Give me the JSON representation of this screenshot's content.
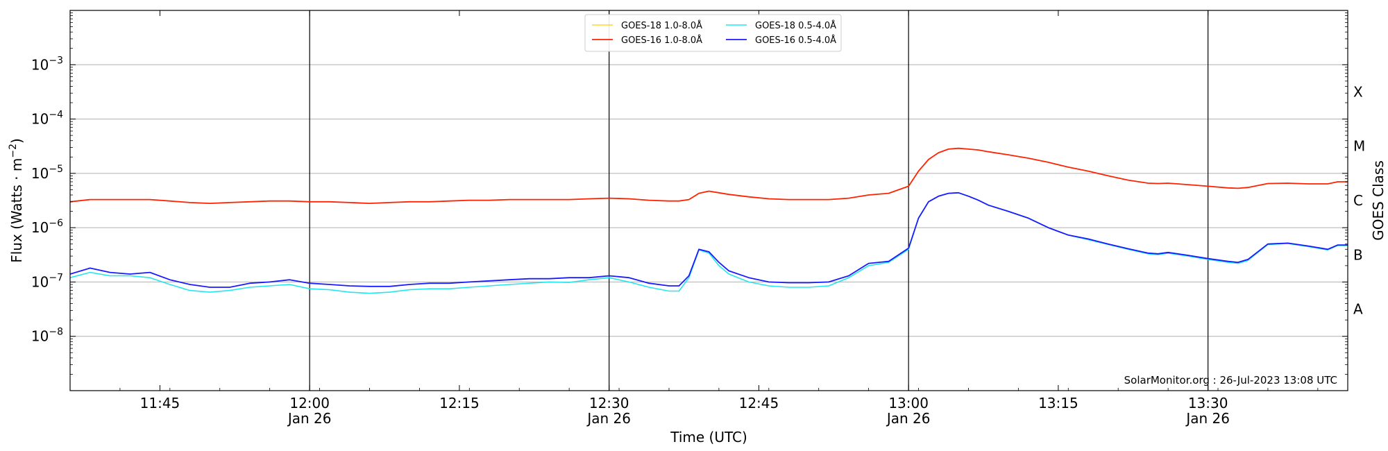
{
  "chart_data": {
    "type": "line",
    "xlabel": "Time (UTC)",
    "ylabel": "Flux (Watts · m⁻²)",
    "y2label": "GOES Class",
    "yscale": "log",
    "xlim": [
      "11:36",
      "13:44"
    ],
    "ylim": [
      1e-09,
      0.01
    ],
    "grid": "horizontal",
    "legend_position": "top-center",
    "credit": "SolarMonitor.org : 26-Jul-2023 13:08 UTC",
    "x_ticks": [
      {
        "time": "11:45",
        "label": "11:45",
        "date": ""
      },
      {
        "time": "12:00",
        "label": "12:00",
        "date": "Jan 26"
      },
      {
        "time": "12:15",
        "label": "12:15",
        "date": ""
      },
      {
        "time": "12:30",
        "label": "12:30",
        "date": "Jan 26"
      },
      {
        "time": "12:45",
        "label": "12:45",
        "date": ""
      },
      {
        "time": "13:00",
        "label": "13:00",
        "date": "Jan 26"
      },
      {
        "time": "13:15",
        "label": "13:15",
        "date": ""
      },
      {
        "time": "13:30",
        "label": "13:30",
        "date": "Jan 26"
      }
    ],
    "vlines": [
      "12:00",
      "12:30",
      "13:00",
      "13:30"
    ],
    "y_ticks": [
      {
        "value": 0.001,
        "base": "10",
        "exp": "−3"
      },
      {
        "value": 0.0001,
        "base": "10",
        "exp": "−4"
      },
      {
        "value": 1e-05,
        "base": "10",
        "exp": "−5"
      },
      {
        "value": 1e-06,
        "base": "10",
        "exp": "−6"
      },
      {
        "value": 1e-07,
        "base": "10",
        "exp": "−7"
      },
      {
        "value": 1e-08,
        "base": "10",
        "exp": "−8"
      }
    ],
    "goes_classes": [
      {
        "label": "X",
        "value": 0.000316
      },
      {
        "label": "M",
        "value": 3.16e-05
      },
      {
        "label": "C",
        "value": 3.16e-06
      },
      {
        "label": "B",
        "value": 3.16e-07
      },
      {
        "label": "A",
        "value": 3.16e-08
      }
    ],
    "x": [
      "11:36",
      "11:38",
      "11:40",
      "11:42",
      "11:44",
      "11:46",
      "11:48",
      "11:50",
      "11:52",
      "11:54",
      "11:56",
      "11:58",
      "12:00",
      "12:02",
      "12:04",
      "12:06",
      "12:08",
      "12:10",
      "12:12",
      "12:14",
      "12:16",
      "12:18",
      "12:20",
      "12:22",
      "12:24",
      "12:26",
      "12:28",
      "12:30",
      "12:32",
      "12:34",
      "12:36",
      "12:37",
      "12:38",
      "12:39",
      "12:40",
      "12:41",
      "12:42",
      "12:44",
      "12:46",
      "12:48",
      "12:50",
      "12:52",
      "12:54",
      "12:56",
      "12:58",
      "13:00",
      "13:01",
      "13:02",
      "13:03",
      "13:04",
      "13:05",
      "13:06",
      "13:07",
      "13:08",
      "13:10",
      "13:12",
      "13:14",
      "13:16",
      "13:18",
      "13:20",
      "13:22",
      "13:24",
      "13:25",
      "13:26",
      "13:28",
      "13:30",
      "13:32",
      "13:33",
      "13:34",
      "13:36",
      "13:38",
      "13:40",
      "13:42",
      "13:43",
      "13:44"
    ],
    "series": [
      {
        "name": "GOES-18 1.0-8.0Å",
        "color": "#ffd000",
        "width": 1.2,
        "values": [
          3e-06,
          3.3e-06,
          3.3e-06,
          3.3e-06,
          3.3e-06,
          3.1e-06,
          2.9e-06,
          2.8e-06,
          2.9e-06,
          3e-06,
          3.1e-06,
          3.1e-06,
          3e-06,
          3e-06,
          2.9e-06,
          2.8e-06,
          2.9e-06,
          3e-06,
          3e-06,
          3.1e-06,
          3.2e-06,
          3.2e-06,
          3.3e-06,
          3.3e-06,
          3.3e-06,
          3.3e-06,
          3.4e-06,
          3.5e-06,
          3.4e-06,
          3.2e-06,
          3.1e-06,
          3.1e-06,
          3.3e-06,
          4.3e-06,
          4.7e-06,
          4.4e-06,
          4.1e-06,
          3.7e-06,
          3.4e-06,
          3.3e-06,
          3.3e-06,
          3.3e-06,
          3.5e-06,
          4e-06,
          4.3e-06,
          5.8e-06,
          1.1e-05,
          1.8e-05,
          2.4e-05,
          2.8e-05,
          2.9e-05,
          2.8e-05,
          2.7e-05,
          2.5e-05,
          2.2e-05,
          1.9e-05,
          1.6e-05,
          1.3e-05,
          1.1e-05,
          9e-06,
          7.5e-06,
          6.6e-06,
          6.5e-06,
          6.6e-06,
          6.2e-06,
          5.8e-06,
          5.4e-06,
          5.3e-06,
          5.5e-06,
          6.5e-06,
          6.6e-06,
          6.4e-06,
          6.4e-06,
          7e-06,
          7e-06
        ]
      },
      {
        "name": "GOES-16 1.0-8.0Å",
        "color": "#ff2200",
        "width": 1.8,
        "values": [
          3e-06,
          3.3e-06,
          3.3e-06,
          3.3e-06,
          3.3e-06,
          3.1e-06,
          2.9e-06,
          2.8e-06,
          2.9e-06,
          3e-06,
          3.1e-06,
          3.1e-06,
          3e-06,
          3e-06,
          2.9e-06,
          2.8e-06,
          2.9e-06,
          3e-06,
          3e-06,
          3.1e-06,
          3.2e-06,
          3.2e-06,
          3.3e-06,
          3.3e-06,
          3.3e-06,
          3.3e-06,
          3.4e-06,
          3.5e-06,
          3.4e-06,
          3.2e-06,
          3.1e-06,
          3.1e-06,
          3.3e-06,
          4.3e-06,
          4.7e-06,
          4.4e-06,
          4.1e-06,
          3.7e-06,
          3.4e-06,
          3.3e-06,
          3.3e-06,
          3.3e-06,
          3.5e-06,
          4e-06,
          4.3e-06,
          5.8e-06,
          1.1e-05,
          1.8e-05,
          2.4e-05,
          2.8e-05,
          2.9e-05,
          2.8e-05,
          2.7e-05,
          2.5e-05,
          2.2e-05,
          1.9e-05,
          1.6e-05,
          1.3e-05,
          1.1e-05,
          9e-06,
          7.5e-06,
          6.6e-06,
          6.5e-06,
          6.6e-06,
          6.2e-06,
          5.8e-06,
          5.4e-06,
          5.3e-06,
          5.5e-06,
          6.5e-06,
          6.6e-06,
          6.4e-06,
          6.4e-06,
          7e-06,
          7e-06
        ]
      },
      {
        "name": "GOES-18 0.5-4.0Å",
        "color": "#22e8ee",
        "width": 1.6,
        "values": [
          1.2e-07,
          1.5e-07,
          1.3e-07,
          1.3e-07,
          1.2e-07,
          9e-08,
          7e-08,
          6.5e-08,
          7e-08,
          8e-08,
          8.5e-08,
          9e-08,
          7.5e-08,
          7.2e-08,
          6.5e-08,
          6.2e-08,
          6.5e-08,
          7.2e-08,
          7.5e-08,
          7.5e-08,
          8e-08,
          8.5e-08,
          9e-08,
          9.5e-08,
          1e-07,
          9.8e-08,
          1.1e-07,
          1.2e-07,
          1e-07,
          8e-08,
          6.8e-08,
          6.8e-08,
          1.2e-07,
          3.9e-07,
          3.4e-07,
          2e-07,
          1.4e-07,
          1e-07,
          8.5e-08,
          8e-08,
          8e-08,
          8.5e-08,
          1.2e-07,
          2e-07,
          2.3e-07,
          4e-07,
          1.5e-06,
          3e-06,
          3.8e-06,
          4.3e-06,
          4.4e-06,
          3.8e-06,
          3.2e-06,
          2.6e-06,
          2e-06,
          1.5e-06,
          1e-06,
          7.3e-07,
          6e-07,
          4.9e-07,
          4e-07,
          3.3e-07,
          3.2e-07,
          3.4e-07,
          3e-07,
          2.6e-07,
          2.3e-07,
          2.2e-07,
          2.5e-07,
          4.9e-07,
          5.1e-07,
          4.5e-07,
          3.9e-07,
          4.7e-07,
          4.7e-07
        ]
      },
      {
        "name": "GOES-16 0.5-4.0Å",
        "color": "#1a1aff",
        "width": 1.8,
        "values": [
          1.4e-07,
          1.8e-07,
          1.5e-07,
          1.4e-07,
          1.5e-07,
          1.1e-07,
          9e-08,
          8e-08,
          8e-08,
          9.5e-08,
          1e-07,
          1.1e-07,
          9.5e-08,
          9e-08,
          8.5e-08,
          8.3e-08,
          8.3e-08,
          9e-08,
          9.5e-08,
          9.5e-08,
          1e-07,
          1.05e-07,
          1.1e-07,
          1.15e-07,
          1.15e-07,
          1.2e-07,
          1.2e-07,
          1.3e-07,
          1.2e-07,
          9.5e-08,
          8.5e-08,
          8.5e-08,
          1.3e-07,
          4e-07,
          3.6e-07,
          2.3e-07,
          1.6e-07,
          1.2e-07,
          1e-07,
          9.7e-08,
          9.7e-08,
          1e-07,
          1.3e-07,
          2.2e-07,
          2.4e-07,
          4.2e-07,
          1.5e-06,
          3e-06,
          3.8e-06,
          4.3e-06,
          4.4e-06,
          3.8e-06,
          3.2e-06,
          2.6e-06,
          2e-06,
          1.5e-06,
          1e-06,
          7.3e-07,
          6.2e-07,
          5e-07,
          4.1e-07,
          3.4e-07,
          3.3e-07,
          3.5e-07,
          3.1e-07,
          2.7e-07,
          2.4e-07,
          2.3e-07,
          2.6e-07,
          5e-07,
          5.2e-07,
          4.6e-07,
          4e-07,
          4.8e-07,
          4.8e-07
        ]
      }
    ]
  }
}
